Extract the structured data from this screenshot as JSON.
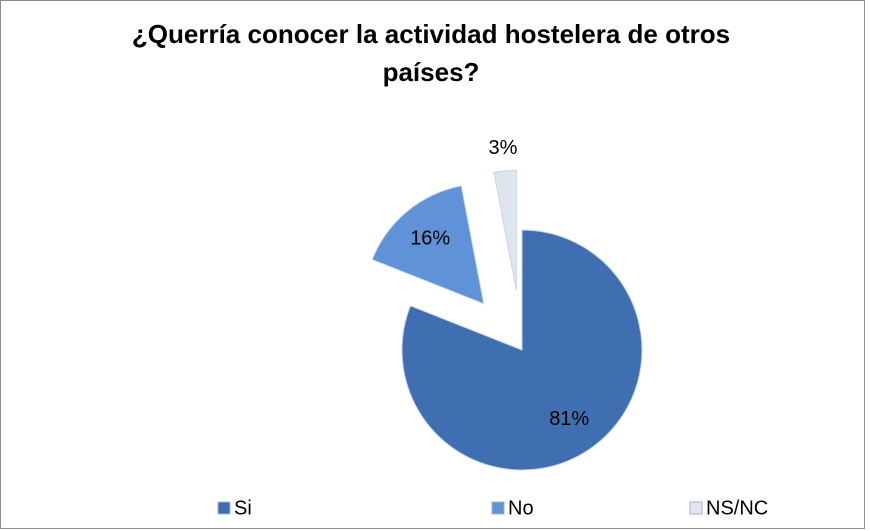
{
  "chart_data": {
    "type": "pie",
    "title": "¿Querría conocer la actividad hostelera de otros países?",
    "categories": [
      "Si",
      "No",
      "NS/NC"
    ],
    "values": [
      81,
      16,
      3
    ],
    "value_labels": [
      "81%",
      "16%",
      "3%"
    ],
    "colors": [
      "#3f6fb0",
      "#5f92d6",
      "#dfe5ee"
    ],
    "legend": "bottom"
  }
}
